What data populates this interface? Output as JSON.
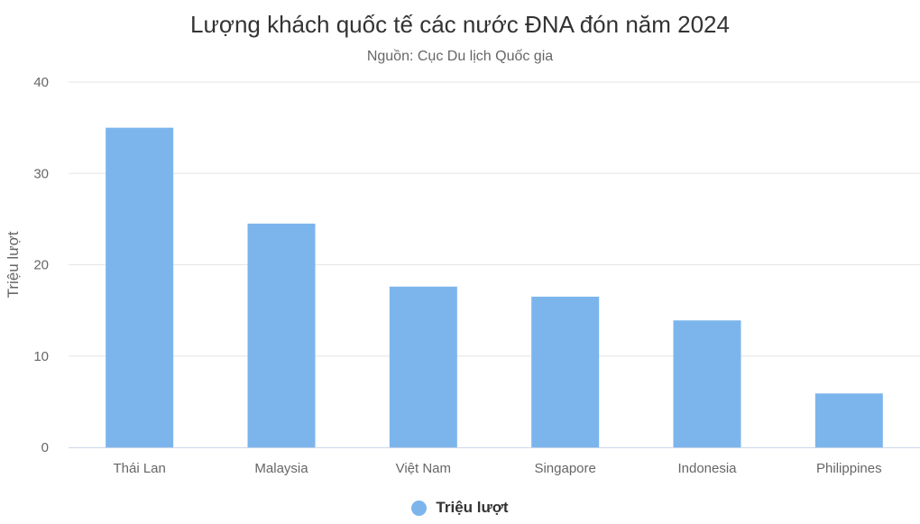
{
  "chart_data": {
    "type": "bar",
    "title": "Lượng khách quốc tế các nước ĐNA đón năm 2024",
    "subtitle": "Nguồn: Cục Du lịch Quốc gia",
    "xlabel": "",
    "ylabel": "Triệu lượt",
    "categories": [
      "Thái Lan",
      "Malaysia",
      "Việt Nam",
      "Singapore",
      "Indonesia",
      "Philippines"
    ],
    "series": [
      {
        "name": "Triệu lượt",
        "color": "#7cb5ec",
        "values": [
          35.0,
          24.5,
          17.6,
          16.5,
          13.9,
          5.9
        ]
      }
    ],
    "ylim": [
      0,
      40
    ],
    "yticks": [
      "0",
      "10",
      "20",
      "30",
      "40"
    ],
    "grid": true,
    "legend_position": "bottom-center"
  }
}
